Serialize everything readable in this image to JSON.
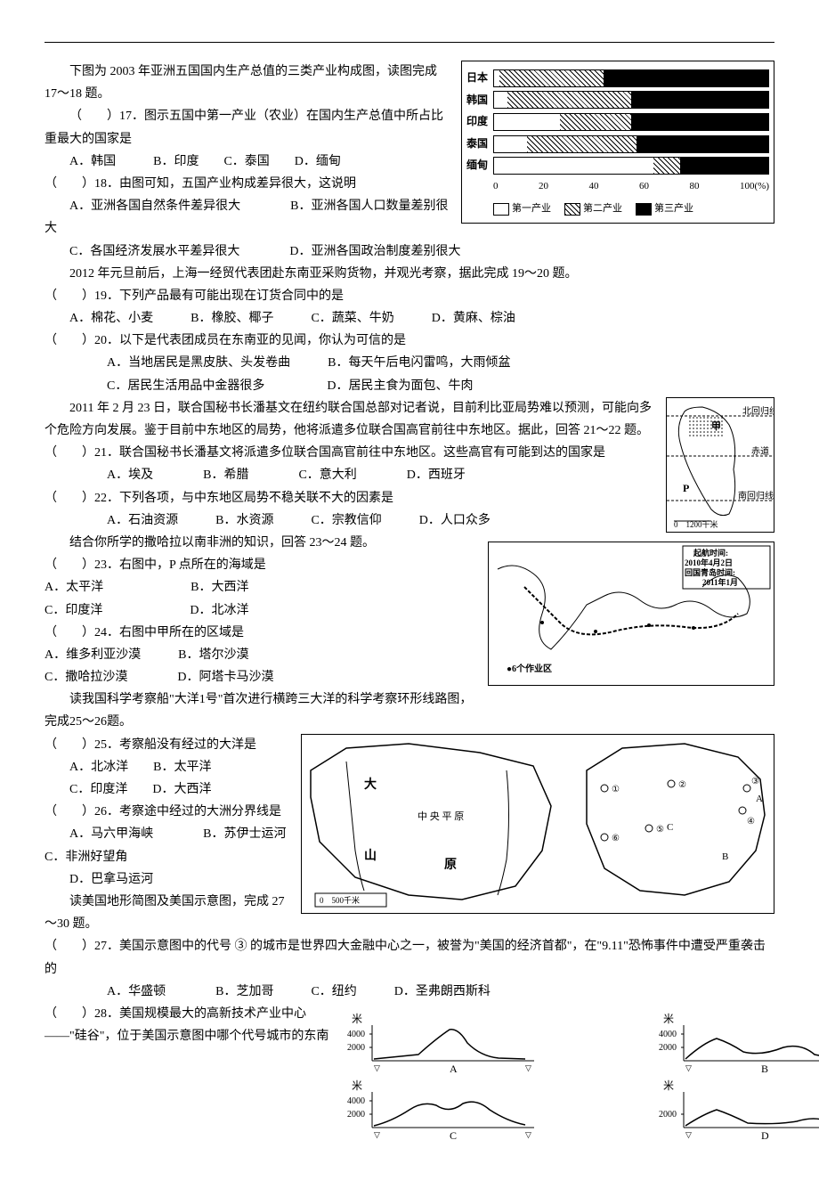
{
  "intro17": "下图为 2003 年亚洲五国国内生产总值的三类产业构成图，读图完成 17～18 题。",
  "q17": "（　　）17．图示五国中第一产业（农业）在国内生产总值中所占比重最大的国家是",
  "q17_opts": "A．韩国　　　B．印度　　C．泰国　　D．缅甸",
  "q18": "（　　）18．由图可知，五国产业构成差异很大，这说明",
  "q18_a": "A．亚洲各国自然条件差异很大　　　　B．亚洲各国人口数量差别很大",
  "q18_c": "C．各国经济发展水平差异很大　　　　D．亚洲各国政治制度差别很大",
  "intro19": "2012 年元旦前后，上海一经贸代表团赴东南亚采购货物，并观光考察，据此完成 19～20 题。",
  "q19": "（　　）19．下列产品最有可能出现在订货合同中的是",
  "q19_opts": "A．棉花、小麦　　　B．橡胶、椰子　　　C．蔬菜、牛奶　　　D．黄麻、棕油",
  "q20": "（　　）20．以下是代表团成员在东南亚的见闻，你认为可信的是",
  "q20_a": "A．当地居民是黑皮肤、头发卷曲　　　B．每天午后电闪雷鸣，大雨倾盆",
  "q20_c": "C．居民生活用品中金器很多　　　　　D．居民主食为面包、牛肉",
  "intro21": "2011 年 2 月 23 日，联合国秘书长潘基文在纽约联合国总部对记者说，目前利比亚局势难以预测，可能向多个危险方向发展。鉴于目前中东地区的局势，他将派遣多位联合国高官前往中东地区。据此，回答 21～22 题。",
  "q21": "（　　）21．联合国秘书长潘基文将派遣多位联合国高官前往中东地区。这些高官有可能到达的国家是",
  "q21_opts": "A．埃及　　　　B．希腊　　　　C．意大利　　　　D．西班牙",
  "q22": "（　　）22．下列各项，与中东地区局势不稳关联不大的因素是",
  "q22_opts": "A．石油资源　　　B．水资源　　　C．宗教信仰　　　D．人口众多",
  "intro23": "结合你所学的撒哈拉以南非洲的知识，回答 23～24 题。",
  "q23": "（　　）23．右图中，P 点所在的海域是",
  "q23_opts": "A．太平洋　　　　　　　B．大西洋",
  "q23_opts2": "C．印度洋　　　　　　　D．北冰洋",
  "q24": "（　　）24．右图中甲所在的区域是",
  "q24_opts": "A．维多利亚沙漠　　　B．塔尔沙漠",
  "q24_opts2": "C．撒哈拉沙漠　　　　D．阿塔卡马沙漠",
  "intro25": "读我国科学考察船\"大洋1号\"首次进行横跨三大洋的科学考察环形线路图，完成25～26题。",
  "q25": "（　　）25．考察船没有经过的大洋是",
  "q25_opts": "A．北冰洋　　B．太平洋",
  "q25_opts2": "C．印度洋　　D．大西洋",
  "q26": "（　　）26．考察途中经过的大洲分界线是",
  "q26_opts": "A．马六甲海峡　　　　B．苏伊士运河　　　C．非洲好望角",
  "q26_d": "D．巴拿马运河",
  "intro27": "读美国地形简图及美国示意图，完成 27～30 题。",
  "q27": "（　　）27．美国示意图中的代号 ③ 的城市是世界四大金融中心之一，被誉为\"美国的经济首都\"，在\"9.11\"恐怖事件中遭受严重袭击的",
  "q27_opts": "A．华盛顿　　　　B．芝加哥　　　C．纽约　　　D．圣弗朗西斯科",
  "q28": "（　　）28．美国规模最大的高新技术产业中心——\"硅谷\"，位于美国示意图中哪个代号城市的东南",
  "chart": {
    "countries": [
      "日本",
      "韩国",
      "印度",
      "泰国",
      "缅甸"
    ],
    "segments": [
      {
        "p1": 2,
        "p2": 38,
        "p3": 60
      },
      {
        "p1": 5,
        "p2": 45,
        "p3": 50
      },
      {
        "p1": 24,
        "p2": 26,
        "p3": 50
      },
      {
        "p1": 12,
        "p2": 40,
        "p3": 48
      },
      {
        "p1": 58,
        "p2": 10,
        "p3": 32
      }
    ],
    "axis": [
      "0",
      "20",
      "40",
      "60",
      "80",
      "100(%)"
    ],
    "legend": [
      "第一产业",
      "第二产业",
      "第三产业"
    ]
  },
  "africa_map": {
    "line1": "北回归线",
    "label_jia": "甲",
    "line2": "赤道",
    "label_p": "P",
    "line3": "南回归线",
    "scale": "0　1200千米"
  },
  "world_map": {
    "label1": "起航时间:",
    "label2": "2010年4月2日",
    "label3": "回国青岛时间:",
    "label4": "2011年1月",
    "label5": "●6个作业区"
  },
  "usa_map": {
    "labels": [
      "大",
      "中 央 平 原",
      "山",
      "原"
    ],
    "scale": "0　500千米",
    "cities": [
      "①",
      "②",
      "③",
      "④",
      "⑤",
      "⑥"
    ],
    "letters": [
      "A",
      "B",
      "C"
    ]
  },
  "profiles": {
    "ylabel": "米",
    "ticks": [
      "4000",
      "2000"
    ],
    "labels": [
      "A",
      "B",
      "C",
      "D"
    ]
  }
}
